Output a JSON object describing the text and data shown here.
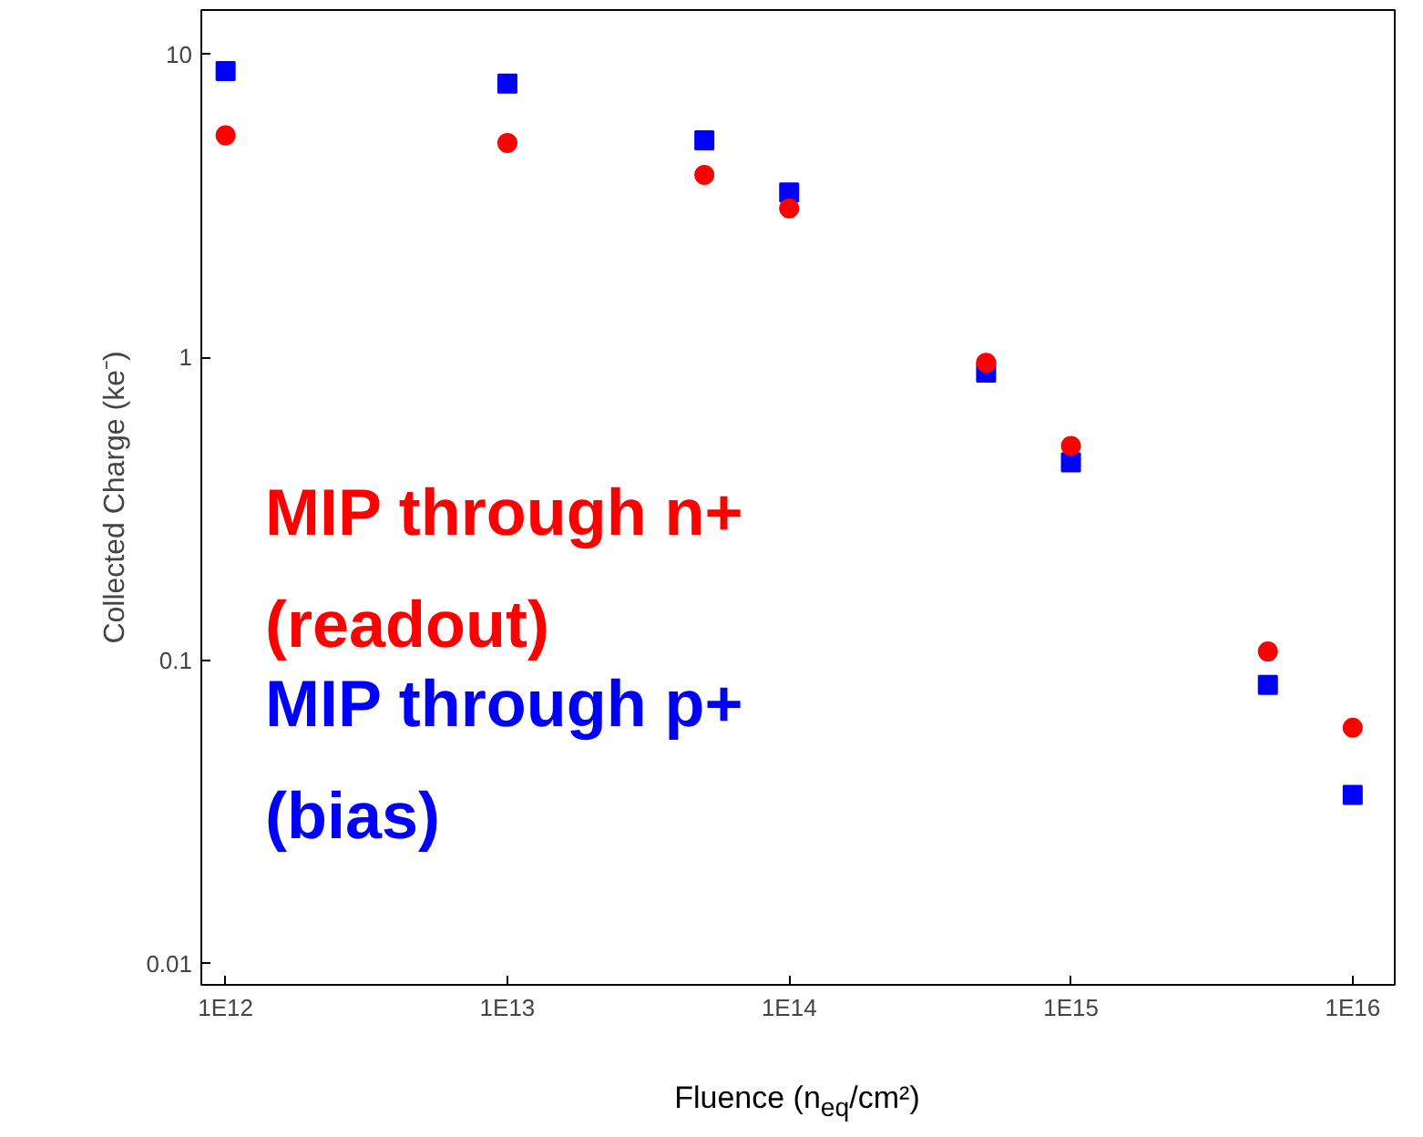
{
  "chart_data": {
    "type": "scatter",
    "xlabel": "Fluence (n$_{eq}$/cm²)",
    "ylabel": "Collected Charge (ke⁻)",
    "x": [
      1000000000000.0,
      10000000000000.0,
      50000000000000.0,
      100000000000000.0,
      500000000000000.0,
      1000000000000000.0,
      5000000000000000.0,
      1e+16
    ],
    "series": [
      {
        "name": "MIP through n+\n(readout)",
        "color": "#ff0000",
        "marker": "circle",
        "values": [
          5.4,
          5.1,
          4.0,
          3.1,
          0.96,
          0.51,
          0.107,
          0.06
        ]
      },
      {
        "name": "MIP through p+\n(bias)",
        "color": "#0000ff",
        "marker": "square",
        "values": [
          8.8,
          8.0,
          5.2,
          3.5,
          0.89,
          0.45,
          0.083,
          0.036
        ]
      }
    ],
    "log": "xy",
    "xlim": [
      820000000000.0,
      1.41e+16
    ],
    "ylim": [
      0.0085,
      14
    ],
    "xticks": [
      {
        "value": 1000000000000.0,
        "label": "1E12"
      },
      {
        "value": 10000000000000.0,
        "label": "1E13"
      },
      {
        "value": 100000000000000.0,
        "label": "1E14"
      },
      {
        "value": 1000000000000000.0,
        "label": "1E15"
      },
      {
        "value": 1e+16,
        "label": "1E16"
      }
    ],
    "yticks": [
      0.01,
      0.1,
      1,
      10
    ],
    "grid": false,
    "legend": false
  }
}
